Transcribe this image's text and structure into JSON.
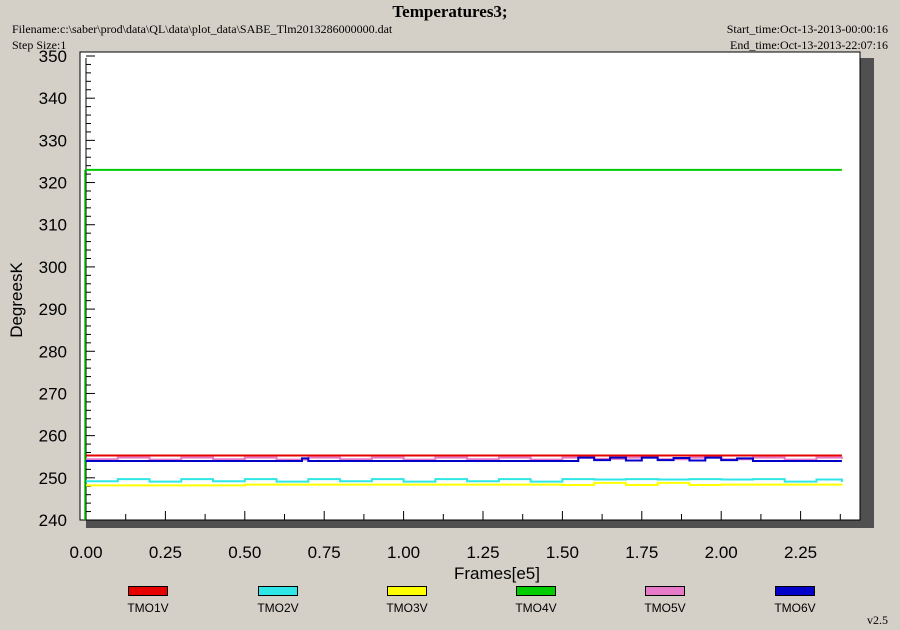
{
  "header": {
    "title": "Temperatures3;",
    "filename": "Filename:c:\\saber\\prod\\data\\QL\\data\\plot_data\\SABE_Tlm2013286000000.dat",
    "step_size": "Step Size:1",
    "start_time": "Start_time:Oct-13-2013-00:00:16",
    "end_time": "End_time:Oct-13-2013-22:07:16"
  },
  "version": "v2.5",
  "chart_data": {
    "type": "line",
    "title": "Temperatures3;",
    "xlabel": "Frames[e5]",
    "ylabel": "DegreesK",
    "xlim": [
      0,
      2.5
    ],
    "ylim": [
      240,
      350
    ],
    "xticks": [
      0,
      0.25,
      0.5,
      0.75,
      1.0,
      1.25,
      1.5,
      1.75,
      2.0,
      2.25
    ],
    "xtick_labels": [
      "0.00",
      "0.25",
      "0.50",
      "0.75",
      "1.00",
      "1.25",
      "1.50",
      "1.75",
      "2.00",
      "2.25"
    ],
    "yticks": [
      240,
      250,
      260,
      270,
      280,
      290,
      300,
      310,
      320,
      330,
      340,
      350
    ],
    "grid": false,
    "legend_position": "bottom",
    "series": [
      {
        "name": "TMO1V",
        "color": "#e60000",
        "x": [
          0,
          2.38
        ],
        "y": [
          255.3,
          255.3
        ]
      },
      {
        "name": "TMO2V",
        "color": "#2ee6e6",
        "x": [
          0,
          0.1,
          0.2,
          0.3,
          0.4,
          0.5,
          0.6,
          0.7,
          0.8,
          0.9,
          1.0,
          1.1,
          1.2,
          1.3,
          1.4,
          1.5,
          1.6,
          1.7,
          1.8,
          1.9,
          2.0,
          2.1,
          2.2,
          2.3,
          2.38
        ],
        "y": [
          249.2,
          249.7,
          249.1,
          249.7,
          249.2,
          249.7,
          249.1,
          249.7,
          249.2,
          249.7,
          249.1,
          249.7,
          249.2,
          249.7,
          249.1,
          249.7,
          249.6,
          249.7,
          249.6,
          249.7,
          249.6,
          249.7,
          249.1,
          249.6,
          249.0
        ]
      },
      {
        "name": "TMO3V",
        "color": "#ffff00",
        "x": [
          0,
          0.5,
          1.0,
          1.5,
          1.6,
          1.7,
          1.8,
          1.9,
          2.0,
          2.38
        ],
        "y": [
          248.2,
          248.4,
          248.4,
          248.3,
          248.8,
          248.3,
          248.8,
          248.3,
          248.4,
          248.3
        ]
      },
      {
        "name": "TMO4V",
        "color": "#00cc00",
        "x": [
          0,
          2.38
        ],
        "y": [
          323.0,
          323.0
        ]
      },
      {
        "name": "TMO5V",
        "color": "#e67ac8",
        "x": [
          0,
          0.1,
          0.2,
          0.3,
          0.4,
          0.5,
          0.6,
          0.7,
          0.8,
          0.9,
          1.0,
          1.1,
          1.2,
          1.3,
          1.4,
          1.5,
          1.6,
          1.7,
          1.8,
          1.9,
          2.0,
          2.1,
          2.2,
          2.3,
          2.38
        ],
        "y": [
          254.4,
          254.8,
          254.3,
          254.8,
          254.4,
          254.8,
          254.3,
          254.8,
          254.4,
          254.8,
          254.3,
          254.8,
          254.4,
          254.8,
          254.3,
          254.8,
          254.5,
          254.8,
          254.4,
          254.8,
          254.4,
          254.8,
          254.3,
          254.8,
          254.5
        ]
      },
      {
        "name": "TMO6V",
        "color": "#0000c8",
        "x": [
          0,
          0.5,
          0.68,
          0.7,
          1.0,
          1.5,
          1.55,
          1.6,
          1.65,
          1.7,
          1.75,
          1.8,
          1.85,
          1.9,
          1.95,
          2.0,
          2.05,
          2.1,
          2.2,
          2.38
        ],
        "y": [
          254.0,
          254.0,
          254.6,
          254.0,
          254.0,
          254.0,
          254.8,
          254.2,
          254.8,
          254.1,
          254.8,
          254.2,
          254.7,
          254.1,
          254.8,
          254.2,
          254.6,
          254.0,
          254.0,
          254.0
        ]
      }
    ]
  }
}
